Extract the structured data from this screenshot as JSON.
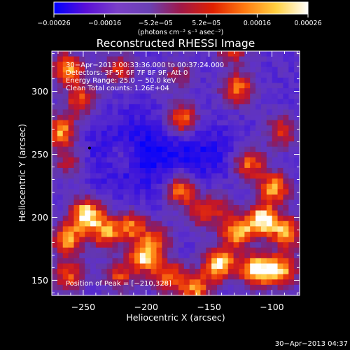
{
  "chart_data": {
    "type": "heatmap",
    "title": "Reconstructed RHESSI Image",
    "xlabel": "Heliocentric X (arcsec)",
    "ylabel": "Heliocentric Y (arcsec)",
    "xlim": [
      -275,
      -78
    ],
    "ylim": [
      138,
      332
    ],
    "x_ticks": [
      {
        "value": -250,
        "label": "−250"
      },
      {
        "value": -200,
        "label": "−200"
      },
      {
        "value": -150,
        "label": "−150"
      },
      {
        "value": -100,
        "label": "−100"
      }
    ],
    "y_ticks": [
      {
        "value": 150,
        "label": "150"
      },
      {
        "value": 200,
        "label": "200"
      },
      {
        "value": 250,
        "label": "250"
      },
      {
        "value": 300,
        "label": "300"
      }
    ],
    "colorbar": {
      "range": [
        -0.00026,
        0.00026
      ],
      "tick_labels": [
        "−0.00026",
        "−0.00016",
        "−5.2e−05",
        "5.2e−05",
        "0.00016",
        "0.00026"
      ],
      "unit_label": "(photons cm⁻² s⁻¹ asec⁻²)",
      "colors": [
        "#0000ff",
        "#5a0fd8",
        "#7a3fc8",
        "#6a40b4",
        "#a01848",
        "#e02000",
        "#ff7a10",
        "#ffd040",
        "#ffffff"
      ]
    },
    "annotations": {
      "time": "30−Apr−2013 00:33:36.000 to 00:37:24.000",
      "detectors": "Detectors: 3F 5F 6F 7F 8F 9F, Att 0",
      "energy": "Energy Range: 25.0 − 50.0 keV",
      "clean": "Clean     Total counts: 1.26E+04",
      "peak": "Position of Peak = [−210,328]"
    },
    "timestamp": "30−Apr−2013 04:37",
    "blobs": [
      {
        "x": -262,
        "y": 318,
        "a": 1.0
      },
      {
        "x": -252,
        "y": 293,
        "a": 0.8
      },
      {
        "x": -268,
        "y": 268,
        "a": 1.0
      },
      {
        "x": -262,
        "y": 243,
        "a": 0.6
      },
      {
        "x": -222,
        "y": 318,
        "a": 0.7
      },
      {
        "x": -172,
        "y": 278,
        "a": 1.0
      },
      {
        "x": -176,
        "y": 313,
        "a": 0.5
      },
      {
        "x": -127,
        "y": 302,
        "a": 0.9
      },
      {
        "x": -132,
        "y": 332,
        "a": 0.6
      },
      {
        "x": -218,
        "y": 248,
        "a": 0.4
      },
      {
        "x": -172,
        "y": 222,
        "a": 1.0
      },
      {
        "x": -158,
        "y": 203,
        "a": 0.5
      },
      {
        "x": -118,
        "y": 243,
        "a": 0.9
      },
      {
        "x": -98,
        "y": 223,
        "a": 1.0
      },
      {
        "x": -92,
        "y": 268,
        "a": 0.7
      },
      {
        "x": -128,
        "y": 188,
        "a": 1.0
      },
      {
        "x": -108,
        "y": 198,
        "a": 1.2
      },
      {
        "x": -88,
        "y": 188,
        "a": 1.0
      },
      {
        "x": -142,
        "y": 163,
        "a": 1.2
      },
      {
        "x": -112,
        "y": 158,
        "a": 1.3
      },
      {
        "x": -92,
        "y": 158,
        "a": 1.0
      },
      {
        "x": -160,
        "y": 143,
        "a": 0.9
      },
      {
        "x": -247,
        "y": 203,
        "a": 1.2
      },
      {
        "x": -262,
        "y": 183,
        "a": 1.0
      },
      {
        "x": -232,
        "y": 188,
        "a": 0.9
      },
      {
        "x": -212,
        "y": 193,
        "a": 0.8
      },
      {
        "x": -202,
        "y": 168,
        "a": 1.0
      },
      {
        "x": -222,
        "y": 153,
        "a": 0.7
      },
      {
        "x": -262,
        "y": 153,
        "a": 0.8
      },
      {
        "x": -182,
        "y": 153,
        "a": 0.9
      },
      {
        "x": -192,
        "y": 183,
        "a": 0.6
      },
      {
        "x": -142,
        "y": 208,
        "a": 0.5
      }
    ]
  }
}
